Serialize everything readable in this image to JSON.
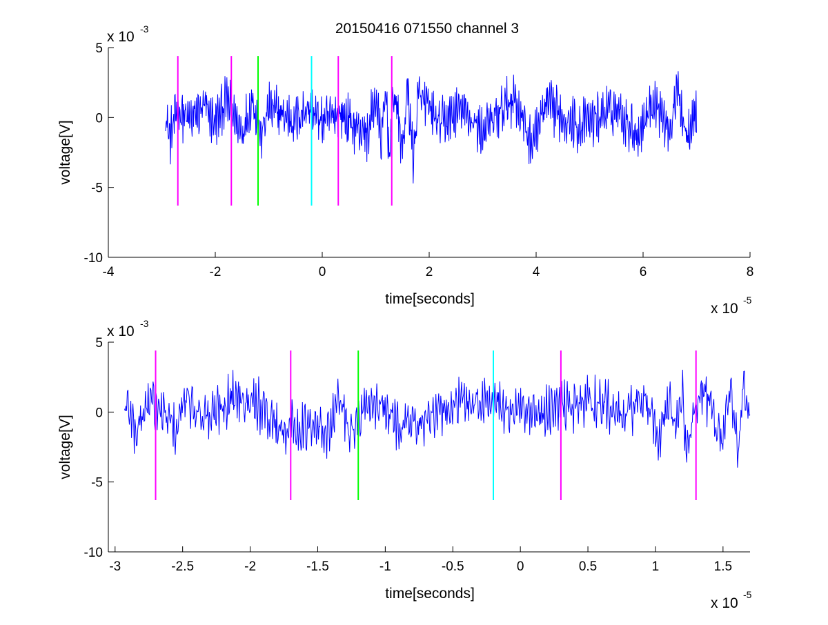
{
  "figure": {
    "title": "20150416 071550 channel 3"
  },
  "chart_data": [
    {
      "type": "line",
      "title": "20150416 071550 channel 3",
      "xlabel": "time[seconds]",
      "ylabel": "voltage[V]",
      "x_multiplier_label": "x 10",
      "x_multiplier_exp": "-5",
      "y_multiplier_label": "x 10",
      "y_multiplier_exp": "-3",
      "xlim": [
        -4,
        8
      ],
      "ylim": [
        -10,
        5
      ],
      "x_units_scale": "1e-5",
      "y_units_scale": "1e-3",
      "xticks": [
        -4,
        -2,
        0,
        2,
        4,
        6,
        8
      ],
      "xtick_labels": [
        "-4",
        "-2",
        "0",
        "2",
        "4",
        "6",
        "8"
      ],
      "yticks": [
        5,
        0,
        -5,
        -10
      ],
      "ytick_labels": [
        "5",
        "0",
        "-5",
        "-10"
      ],
      "grid": false,
      "legend": "none",
      "signal": {
        "color": "#0000ff",
        "x_start": -2.93,
        "x_end": 7.0,
        "description_points": [
          [
            -2.93,
            0.5
          ],
          [
            -2.85,
            -2.8
          ],
          [
            -2.7,
            1.2
          ],
          [
            -2.5,
            -0.5
          ],
          [
            -2.2,
            1.3
          ],
          [
            -2.0,
            -0.7
          ],
          [
            -1.8,
            2.3
          ],
          [
            -1.5,
            -1.9
          ],
          [
            -1.3,
            2.5
          ],
          [
            -1.15,
            -2.6
          ],
          [
            -1.0,
            1.2
          ],
          [
            -0.5,
            -0.5
          ],
          [
            -0.3,
            1.4
          ],
          [
            0.0,
            -0.6
          ],
          [
            0.3,
            0.6
          ],
          [
            0.6,
            -1.1
          ],
          [
            0.85,
            -2.4
          ],
          [
            1.0,
            2.8
          ],
          [
            1.1,
            -3.2
          ],
          [
            1.2,
            3.4
          ],
          [
            1.25,
            -5.0
          ],
          [
            1.35,
            3.6
          ],
          [
            1.5,
            -4.2
          ],
          [
            1.6,
            3.9
          ],
          [
            1.7,
            -5.6
          ],
          [
            1.8,
            2.9
          ],
          [
            2.2,
            -1.0
          ],
          [
            2.6,
            1.1
          ],
          [
            3.0,
            -1.9
          ],
          [
            3.6,
            2.8
          ],
          [
            3.9,
            -3.4
          ],
          [
            4.2,
            1.6
          ],
          [
            4.8,
            -1.1
          ],
          [
            5.5,
            1.2
          ],
          [
            5.9,
            -2.2
          ],
          [
            6.2,
            2.4
          ],
          [
            6.5,
            -1.5
          ],
          [
            6.65,
            3.6
          ],
          [
            6.8,
            -1.9
          ],
          [
            7.0,
            1.0
          ]
        ]
      },
      "markers": [
        {
          "x": -2.7,
          "color": "#ff00ff"
        },
        {
          "x": -1.7,
          "color": "#ff00ff"
        },
        {
          "x": -1.2,
          "color": "#00ff00"
        },
        {
          "x": -0.2,
          "color": "#00ffff"
        },
        {
          "x": 0.3,
          "color": "#ff00ff"
        },
        {
          "x": 1.3,
          "color": "#ff00ff"
        }
      ],
      "marker_y_range": [
        -6.3,
        4.4
      ]
    },
    {
      "type": "line",
      "title": "",
      "xlabel": "time[seconds]",
      "ylabel": "voltage[V]",
      "x_multiplier_label": "x 10",
      "x_multiplier_exp": "-5",
      "y_multiplier_label": "x 10",
      "y_multiplier_exp": "-3",
      "xlim": [
        -3.05,
        1.7
      ],
      "ylim": [
        -10,
        5
      ],
      "x_units_scale": "1e-5",
      "y_units_scale": "1e-3",
      "xticks": [
        -3,
        -2.5,
        -2,
        -1.5,
        -1,
        -0.5,
        0,
        0.5,
        1,
        1.5
      ],
      "xtick_labels": [
        "-3",
        "-2.5",
        "-2",
        "-1.5",
        "-1",
        "-0.5",
        "0",
        "0.5",
        "1",
        "1.5"
      ],
      "yticks": [
        5,
        0,
        -5,
        -10
      ],
      "ytick_labels": [
        "5",
        "0",
        "-5",
        "-10"
      ],
      "grid": false,
      "legend": "none",
      "signal": {
        "color": "#0000ff",
        "x_start": -2.93,
        "x_end": 1.7,
        "description_points": [
          [
            -2.93,
            0.2
          ],
          [
            -2.9,
            0.8
          ],
          [
            -2.85,
            -2.7
          ],
          [
            -2.75,
            1.6
          ],
          [
            -2.6,
            -1.2
          ],
          [
            -2.55,
            -2.5
          ],
          [
            -2.48,
            1.8
          ],
          [
            -2.3,
            -0.8
          ],
          [
            -2.15,
            1.9
          ],
          [
            -2.0,
            2.3
          ],
          [
            -1.8,
            -1.9
          ],
          [
            -1.6,
            -2.1
          ],
          [
            -1.4,
            -2.5
          ],
          [
            -1.35,
            2.5
          ],
          [
            -1.25,
            -2.7
          ],
          [
            -1.1,
            1.4
          ],
          [
            -0.9,
            -1.6
          ],
          [
            -0.65,
            -1.2
          ],
          [
            -0.5,
            1.1
          ],
          [
            -0.25,
            1.4
          ],
          [
            0.1,
            -0.8
          ],
          [
            0.3,
            0.7
          ],
          [
            0.6,
            1.5
          ],
          [
            0.75,
            -1.0
          ],
          [
            0.9,
            2.0
          ],
          [
            1.0,
            -2.2
          ],
          [
            1.05,
            -3.1
          ],
          [
            1.1,
            2.3
          ],
          [
            1.15,
            -2.6
          ],
          [
            1.2,
            3.3
          ],
          [
            1.22,
            -5.0
          ],
          [
            1.35,
            3.1
          ],
          [
            1.5,
            -3.6
          ],
          [
            1.55,
            3.5
          ],
          [
            1.62,
            -5.6
          ],
          [
            1.65,
            3.9
          ],
          [
            1.7,
            -1.9
          ]
        ]
      },
      "markers": [
        {
          "x": -2.7,
          "color": "#ff00ff"
        },
        {
          "x": -1.7,
          "color": "#ff00ff"
        },
        {
          "x": -1.2,
          "color": "#00ff00"
        },
        {
          "x": -0.2,
          "color": "#00ffff"
        },
        {
          "x": 0.3,
          "color": "#ff00ff"
        },
        {
          "x": 1.3,
          "color": "#ff00ff"
        }
      ],
      "marker_y_range": [
        -6.3,
        4.4
      ]
    }
  ]
}
